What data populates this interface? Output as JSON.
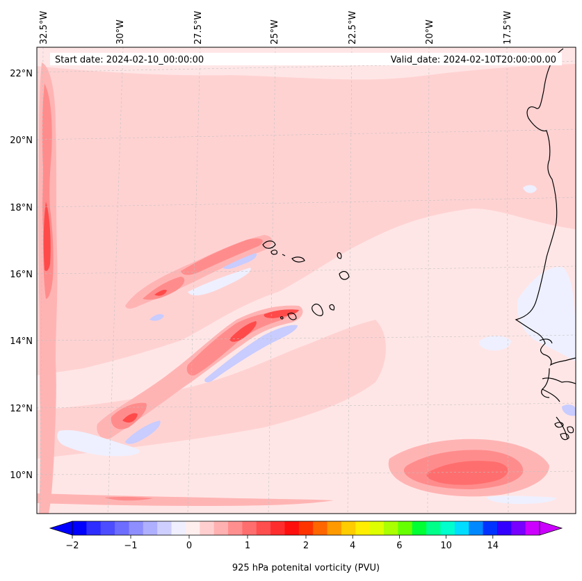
{
  "map": {
    "start_label": "Start date: 2024-02-10_00:00:00",
    "valid_label": "Valid_date: 2024-02-10T20:00:00.00",
    "lon_labels": [
      "32.5°W",
      "30°W",
      "27.5°W",
      "25°W",
      "22.5°W",
      "20°W",
      "17.5°W"
    ],
    "lat_labels": [
      "22°N",
      "20°N",
      "18°N",
      "16°N",
      "14°N",
      "12°N",
      "10°N"
    ],
    "variable": "925 hPa potential vorticity",
    "units": "PVU"
  },
  "colorbar": {
    "label": "925 hPa potenital vorticity (PVU)",
    "ticks": [
      "−2",
      "−1",
      "0",
      "1",
      "2",
      "4",
      "6",
      "10",
      "14"
    ],
    "tick_slots": [
      0,
      2.5,
      5,
      7.5,
      10,
      12,
      14,
      16,
      18
    ],
    "colors": [
      "#0000ff",
      "#2d2dff",
      "#4d4dff",
      "#6d6dff",
      "#8e8eff",
      "#afafff",
      "#cfcfff",
      "#efefff",
      "#ffeeee",
      "#ffcfcf",
      "#ffb0b0",
      "#ff8f8f",
      "#ff6e6e",
      "#ff4e4e",
      "#ff2e2e",
      "#ff0e0e",
      "#ff3300",
      "#ff6600",
      "#ff9900",
      "#ffcc00",
      "#ffee00",
      "#ddff00",
      "#aaff00",
      "#66ff00",
      "#00ff33",
      "#00ff88",
      "#00ffcc",
      "#00ddff",
      "#0088ff",
      "#0033ff",
      "#3300ff",
      "#7700ff",
      "#cc00ff"
    ],
    "under_color": "#0000ff",
    "over_color": "#cc00ff"
  },
  "colors": {
    "bg_field": "#ffe6e6",
    "light_pink": "#ffd2d2",
    "pink": "#ffb4b4",
    "rose": "#ff8c8c",
    "red": "#ff4a4a",
    "blue_light": "#eef0ff",
    "blue": "#c8ccff",
    "coast": "#000000",
    "grid": "#c0c0c0"
  }
}
